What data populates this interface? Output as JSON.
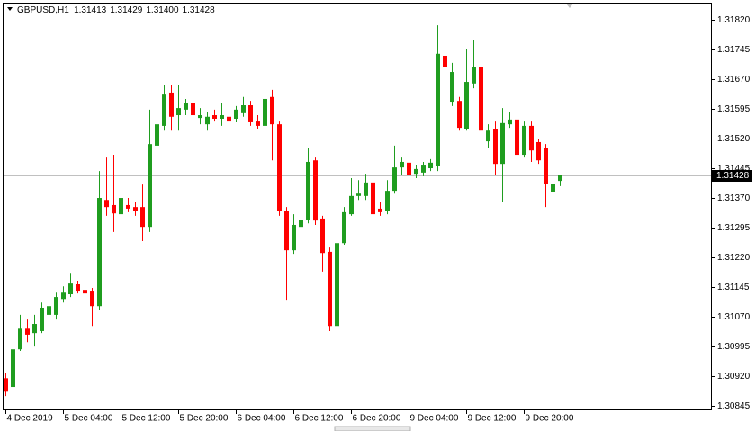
{
  "chart_data": {
    "type": "candlestick",
    "title": "GBPUSD,H1",
    "last_bar_labels": [
      "1.31413",
      "1.31429",
      "1.31400",
      "1.31428"
    ],
    "up_color": "#1f9d1f",
    "down_color": "#ff0000",
    "categories": [
      "4 Dec 2019",
      null,
      null,
      null,
      null,
      null,
      null,
      null,
      "5 Dec 04:00",
      null,
      null,
      null,
      null,
      null,
      null,
      null,
      "5 Dec 12:00",
      null,
      null,
      null,
      null,
      null,
      null,
      null,
      "5 Dec 20:00",
      null,
      null,
      null,
      null,
      null,
      null,
      null,
      "6 Dec 04:00",
      null,
      null,
      null,
      null,
      null,
      null,
      null,
      "6 Dec 12:00",
      null,
      null,
      null,
      null,
      null,
      null,
      null,
      "6 Dec 20:00",
      null,
      null,
      null,
      null,
      null,
      null,
      null,
      "9 Dec 04:00",
      null,
      null,
      null,
      null,
      null,
      null,
      null,
      "9 Dec 12:00",
      null,
      null,
      null,
      null,
      null,
      null,
      null,
      "9 Dec 20:00",
      null,
      null,
      null,
      null,
      null
    ],
    "open": [
      1.30915,
      1.30893,
      1.30988,
      1.3104,
      1.31029,
      1.31034,
      1.31075,
      1.31075,
      1.31115,
      1.31127,
      1.31152,
      1.31138,
      1.31136,
      1.31097,
      1.31365,
      1.31352,
      1.31329,
      1.31352,
      1.31347,
      1.31347,
      1.31297,
      1.31502,
      1.31552,
      1.31636,
      1.31579,
      1.31593,
      1.31609,
      1.31572,
      1.31556,
      1.31579,
      1.3157,
      1.31575,
      1.3157,
      1.31584,
      1.31604,
      1.31563,
      1.31552,
      1.31625,
      1.31556,
      1.31336,
      1.31238,
      1.31297,
      1.31315,
      1.31465,
      1.31318,
      1.31234,
      1.31047,
      1.31256,
      1.31329,
      1.31375,
      1.31375,
      1.31409,
      1.31343,
      1.31338,
      1.31388,
      1.31447,
      1.31459,
      1.31431,
      1.31434,
      1.31445,
      1.3145,
      1.31729,
      1.31613,
      1.31615,
      1.31545,
      1.31659,
      1.317,
      1.31513,
      1.31545,
      1.31456,
      1.31556,
      1.31568,
      1.31479,
      1.31552,
      1.31511,
      1.31495,
      1.31386,
      1.31413
    ],
    "high": [
      1.30927,
      1.30995,
      1.31075,
      1.31063,
      1.31075,
      1.31106,
      1.31113,
      1.31131,
      1.31147,
      1.31181,
      1.31161,
      1.31143,
      1.31143,
      1.31438,
      1.31472,
      1.31479,
      1.31381,
      1.3137,
      1.31359,
      1.31404,
      1.31593,
      1.31575,
      1.31654,
      1.31654,
      1.31654,
      1.3162,
      1.31631,
      1.31597,
      1.31586,
      1.31593,
      1.31609,
      1.31586,
      1.31602,
      1.31625,
      1.31615,
      1.31579,
      1.3165,
      1.31643,
      1.31563,
      1.31347,
      1.31329,
      1.31336,
      1.31495,
      1.31472,
      1.31325,
      1.31245,
      1.31268,
      1.31347,
      1.3142,
      1.31415,
      1.31431,
      1.31415,
      1.31359,
      1.31415,
      1.31502,
      1.31472,
      1.31465,
      1.31454,
      1.31461,
      1.31468,
      1.31806,
      1.3179,
      1.31711,
      1.31625,
      1.31745,
      1.31768,
      1.31772,
      1.31556,
      1.31563,
      1.31597,
      1.31586,
      1.31593,
      1.31563,
      1.31563,
      1.31518,
      1.31506,
      1.31445,
      1.31429
    ],
    "low": [
      1.3087,
      1.30875,
      1.30984,
      1.31006,
      1.30995,
      1.31029,
      1.31063,
      1.31063,
      1.31106,
      1.3112,
      1.31129,
      1.3112,
      1.31047,
      1.31086,
      1.31325,
      1.31284,
      1.31252,
      1.31334,
      1.31325,
      1.31261,
      1.31284,
      1.31472,
      1.3154,
      1.3154,
      1.3154,
      1.31579,
      1.3154,
      1.31556,
      1.3154,
      1.31563,
      1.31552,
      1.31529,
      1.31561,
      1.31575,
      1.31552,
      1.31545,
      1.31547,
      1.31465,
      1.31325,
      1.31113,
      1.31229,
      1.31284,
      1.31306,
      1.31302,
      1.31184,
      1.31034,
      1.31006,
      1.31252,
      1.31325,
      1.31365,
      1.31365,
      1.31318,
      1.31325,
      1.31329,
      1.31381,
      1.31427,
      1.3142,
      1.3142,
      1.31425,
      1.31438,
      1.31438,
      1.31688,
      1.31602,
      1.3154,
      1.3154,
      1.31647,
      1.31529,
      1.31495,
      1.31427,
      1.31359,
      1.31547,
      1.31472,
      1.31472,
      1.31461,
      1.31456,
      1.31347,
      1.31352,
      1.314
    ],
    "close": [
      1.30881,
      1.30988,
      1.3104,
      1.31025,
      1.31052,
      1.31093,
      1.31097,
      1.3112,
      1.31131,
      1.31154,
      1.31136,
      1.31129,
      1.31097,
      1.3137,
      1.31347,
      1.31331,
      1.3137,
      1.31343,
      1.31336,
      1.31297,
      1.31506,
      1.31556,
      1.31631,
      1.31575,
      1.31597,
      1.31609,
      1.31579,
      1.31579,
      1.31575,
      1.3157,
      1.31579,
      1.31563,
      1.31593,
      1.31604,
      1.31561,
      1.31552,
      1.3162,
      1.31556,
      1.31336,
      1.31238,
      1.31302,
      1.31315,
      1.31461,
      1.31313,
      1.31231,
      1.31047,
      1.31256,
      1.31334,
      1.31375,
      1.31381,
      1.31409,
      1.31329,
      1.31334,
      1.31388,
      1.31447,
      1.31461,
      1.31429,
      1.31443,
      1.31454,
      1.31459,
      1.31734,
      1.317,
      1.31688,
      1.31547,
      1.31663,
      1.317,
      1.3154,
      1.3154,
      1.31456,
      1.31559,
      1.31568,
      1.31479,
      1.31552,
      1.3149,
      1.31465,
      1.31406,
      1.31406,
      1.31428
    ],
    "ylim": [
      1.30834,
      1.31863
    ],
    "yticks": [
      {
        "value": 1.3182,
        "label": "1.31820"
      },
      1.31745,
      {
        "value": 1.3167,
        "label": "1.31670"
      },
      1.31595,
      {
        "value": 1.3152,
        "label": "1.31520"
      },
      1.31445,
      {
        "value": 1.3137,
        "label": "1.31370"
      },
      1.31295,
      {
        "value": 1.3122,
        "label": "1.31220"
      },
      1.31145,
      {
        "value": 1.3107,
        "label": "1.31070"
      },
      1.30995,
      {
        "value": 1.3092,
        "label": "1.30920"
      },
      1.30845
    ],
    "price_line": {
      "value": 1.31428,
      "label": "1.31428"
    }
  }
}
